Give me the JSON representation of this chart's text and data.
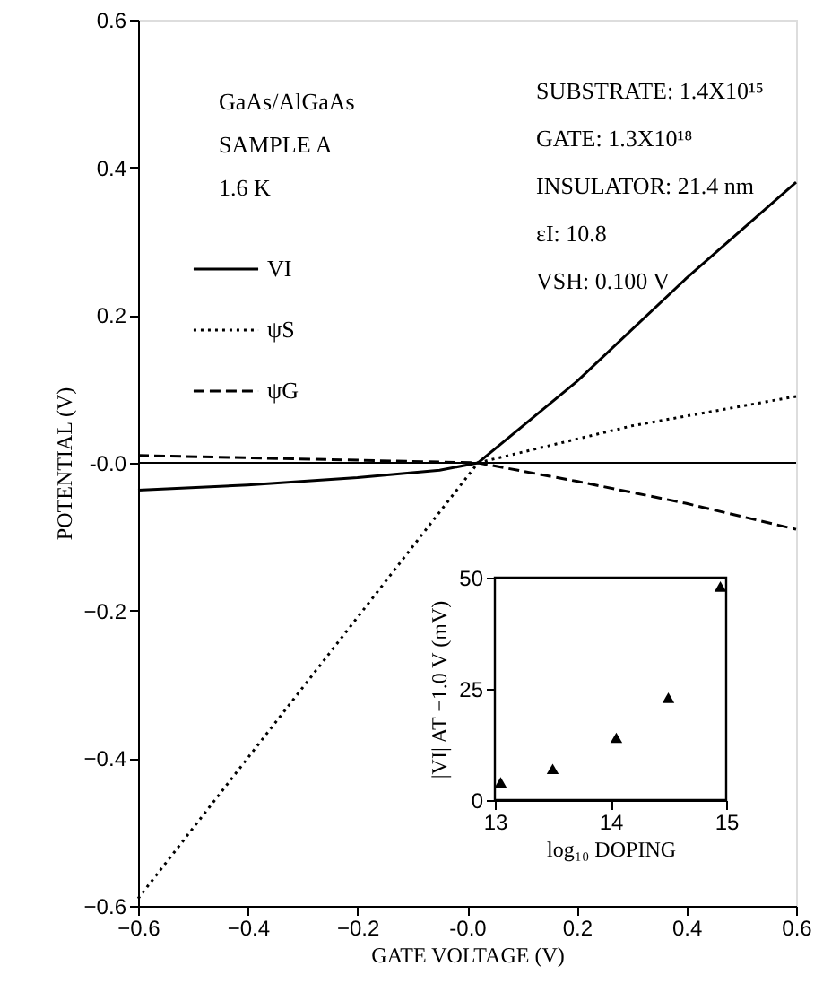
{
  "chart_data": [
    {
      "type": "line",
      "xlabel": "GATE VOLTAGE (V)",
      "ylabel": "POTENTIAL (V)",
      "xlim": [
        -0.6,
        0.6
      ],
      "ylim": [
        -0.6,
        0.6
      ],
      "xticks": [
        -0.6,
        -0.4,
        -0.2,
        {
          "value": 0,
          "label": "-0.0"
        },
        0.2,
        0.4,
        0.6
      ],
      "yticks": [
        -0.6,
        -0.4,
        -0.2,
        {
          "value": 0,
          "label": "-0.0"
        },
        0.2,
        0.4,
        0.6
      ],
      "grid": false,
      "legend": "top left",
      "series": [
        {
          "name": "VI",
          "color": "#000000",
          "line_style": "solid",
          "x": [
            -0.6,
            -0.4,
            -0.2,
            -0.05,
            0.02,
            0.2,
            0.4,
            0.6
          ],
          "values": [
            -0.037,
            -0.03,
            -0.02,
            -0.01,
            0,
            0.11,
            0.25,
            0.38
          ]
        },
        {
          "name": "ψS",
          "color": "#000000",
          "line_style": "dotted",
          "x": [
            -0.6,
            0.02,
            0.3,
            0.6
          ],
          "values": [
            -0.59,
            0,
            0.05,
            0.09
          ]
        },
        {
          "name": "ψG",
          "color": "#000000",
          "line_style": "dashed",
          "x": [
            -0.6,
            0.02,
            0.2,
            0.4,
            0.6
          ],
          "values": [
            0.01,
            0,
            -0.025,
            -0.055,
            -0.09
          ]
        }
      ],
      "ref_lines": [
        {
          "axis": "y",
          "value": 0,
          "color": "#000000",
          "line_style": "solid"
        }
      ],
      "annotations": [
        "GaAs/AlGaAs",
        "SAMPLE A",
        "1.6 K",
        "SUBSTRATE: 1.4X10¹⁵",
        "GATE: 1.3X10¹⁸",
        "INSULATOR: 21.4 nm",
        "εI: 10.8",
        "VSH: 0.100 V"
      ]
    },
    {
      "type": "scatter",
      "xlabel": "log₁₀ DOPING",
      "ylabel": "|VI| AT −1.0 V (mV)",
      "xlim": [
        13,
        15
      ],
      "ylim": [
        0,
        50
      ],
      "xticks": [
        13,
        14,
        15
      ],
      "yticks": [
        0,
        25,
        50
      ],
      "grid": false,
      "marker": "triangle",
      "series": [
        {
          "color": "#000000",
          "x": [
            13.05,
            13.5,
            14.05,
            14.5,
            14.95
          ],
          "values": [
            4,
            7,
            14,
            23,
            48
          ]
        }
      ]
    }
  ]
}
